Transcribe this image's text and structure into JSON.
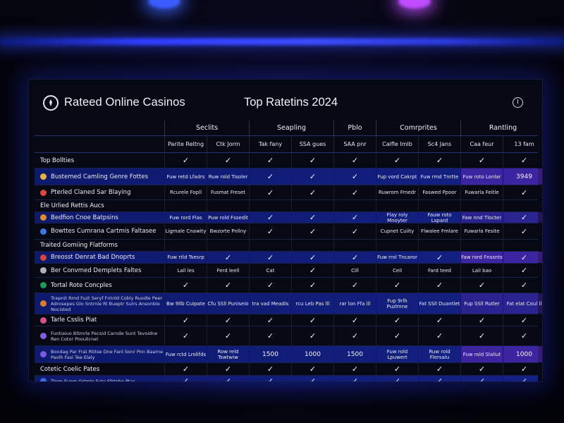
{
  "header": {
    "site_title": "Rateed Online Casinos",
    "page_title": "Top Ratetins 2024"
  },
  "columns": {
    "groups": [
      "Seclits",
      "Seapling",
      "Pblo",
      "Comrprites",
      "Rantling"
    ],
    "subheads": [
      "Parite Reltng",
      "Ctk Jorm",
      "Tak fany",
      "SSA gues",
      "SAA pnr",
      "Calfle Imlb",
      "Sc4 Jans",
      "Caa feur",
      "13 fam"
    ]
  },
  "rows": [
    {
      "label": "Top Bollties",
      "style": "none",
      "section": true,
      "cells": [
        "✓",
        "✓",
        "✓",
        "✓",
        "✓",
        "✓",
        "✓",
        "✓",
        "✓"
      ]
    },
    {
      "label": "Bustemed Camling Genre Fottes",
      "style": "blue",
      "icon_color": "#e8b53a",
      "cells": [
        "Fuw retd Lfadrs",
        "Ruw rold Tisoler",
        "✓",
        "✓",
        "✓",
        "Fup vord Cakrpt",
        "Fuw rmd Tnrtte",
        "Fuw roto Lonlar",
        "3949"
      ],
      "purple": [
        7,
        8
      ]
    },
    {
      "label": "Pterled Claned Sar Blaying",
      "style": "none",
      "icon_color": "#e0453a",
      "cells": [
        "Rcurele Fopll",
        "Fusmat Freset",
        "✓",
        "✓",
        "✓",
        "Ruwrom Frnedr",
        "Faswed Ppoor",
        "Fuwarla Feitle",
        "✓"
      ]
    },
    {
      "label": "Ele Urlied Rettis Aucs",
      "style": "none",
      "section": true,
      "cells": [
        "",
        "",
        "",
        "",
        "",
        "",
        "",
        "",
        ""
      ]
    },
    {
      "label": "Bedfion Cnoe Batpsins",
      "style": "blue",
      "icon_color": "#e08a2a",
      "cells": [
        "Fuw rord Flas",
        "Puw rold Fssedit",
        "✓",
        "✓",
        "✓",
        "Flay roly Mnoyter",
        "Fauw roto Lspard",
        "Faw nnd Tlocter",
        "✓"
      ],
      "purple": [
        7,
        8
      ]
    },
    {
      "label": "Bowttes Cumrana Cartmis Faltasee",
      "style": "none",
      "icon_color": "#3a7ae0",
      "cells": [
        "Ligmale Cnawity",
        "Bwzorte Pnllny",
        "✓",
        "✓",
        "✓",
        "Cupnet Cuiity",
        "Flwalee Fmlare",
        "Fuwarla Fesite",
        "✓"
      ]
    },
    {
      "label": "Traited Gomiing Flatforms",
      "style": "none",
      "section": true,
      "cells": [
        "",
        "",
        "",
        "",
        "",
        "",
        "",
        "",
        ""
      ]
    },
    {
      "label": "Breosst Denrat Bad Dnoprts",
      "style": "blue",
      "icon_color": "#d8453a",
      "cells": [
        "Fuw rtld Tsesrp",
        "✓",
        "✓",
        "✓",
        "✓",
        "Fuw rrol Tncaror",
        "✓",
        "Faw rord Fnssnts",
        "✓"
      ],
      "purple": [
        7,
        8
      ]
    },
    {
      "label": "Ber Convmed Demplets Faltes",
      "style": "none",
      "icon_color": "#b0b0c0",
      "cells": [
        "Lail les",
        "Ferd leell",
        "Cat",
        "✓",
        "Cill",
        "Ceil",
        "Fard teed",
        "Lail bao",
        "✓"
      ]
    },
    {
      "label": "Tortal Rote Concples",
      "style": "none",
      "section": true,
      "icon_color": "#1c9a5a",
      "cells": [
        "✓",
        "✓",
        "✓",
        "✓",
        "✓",
        "✓",
        "✓",
        "✓",
        "✓"
      ]
    },
    {
      "label": "Tcepnit Rmd Fuzt Seryf Fntnld Cobly Ruodle Peer Adrosepes Glo Sntrnle Rl Bueptr Sulrs Ansonble Nocisted",
      "style": "blue",
      "icon_color": "#e07a2a",
      "small": true,
      "cells": [
        "Bw 9llb Cuipate",
        "Cfu SSll Puniseio",
        "tra vad Meadis",
        "rcu Leb Pas lll",
        "rar lon Ffa lll",
        "Fup 9rlh Puzlmne",
        "Fat SSll Duantlet",
        "Fup SSll Rutler",
        "Fat elat Coul ll"
      ],
      "purple": [
        7,
        8
      ]
    },
    {
      "label": "Tarle Csslis Piat",
      "style": "none",
      "section": true,
      "icon_color": "#d8508a",
      "cells": [
        "✓",
        "✓",
        "✓",
        "✓",
        "✓",
        "✓",
        "✓",
        "✓",
        "✓"
      ]
    },
    {
      "label": "Funtiaiuo Bltmrle Pecsid Carnde Sunt Tevoidne Ren Cotor Pooulicnel",
      "style": "none",
      "icon_color": "#8a5ae0",
      "small": true,
      "cells": [
        "✓",
        "✓",
        "✓",
        "✓",
        "✓",
        "✓",
        "✓",
        "✓",
        "✓"
      ]
    },
    {
      "label": "Bondag Par Frat Rtitse Dne Fanl Sonr Pnn Baarne Paolh Fasi Tee Elaly",
      "style": "blue",
      "icon_color": "#7a5ae0",
      "small": true,
      "cells": [
        "Fuw rctd Lrolifds",
        "Row reld Tswtwiw",
        "1500",
        "1000",
        "1500",
        "Fuw rold Lpuwert",
        "Ruw rold Flersalu",
        "Fuw rold Slaliut",
        "1000"
      ],
      "purple": [
        7,
        8
      ]
    },
    {
      "label": "Cotetic Coelic Pates",
      "style": "none",
      "section": true,
      "cells": [
        "✓",
        "✓",
        "✓",
        "✓",
        "✓",
        "✓",
        "✓",
        "✓",
        "✓"
      ]
    },
    {
      "label": "Thrm Evom Grtmle Fvte Sfrtpbo Ptas",
      "style": "blue",
      "icon_color": "#3a6ae0",
      "small": true,
      "cells": [
        "✓",
        "✓",
        "✓",
        "✓",
        "✓",
        "✓",
        "✓",
        "✓",
        "✓"
      ]
    }
  ],
  "colors": {
    "row_blue": "#1c30c8",
    "cell_purple": "#5828b4",
    "accent_light_left": "#3a5cff",
    "accent_light_right": "#c04cff"
  }
}
